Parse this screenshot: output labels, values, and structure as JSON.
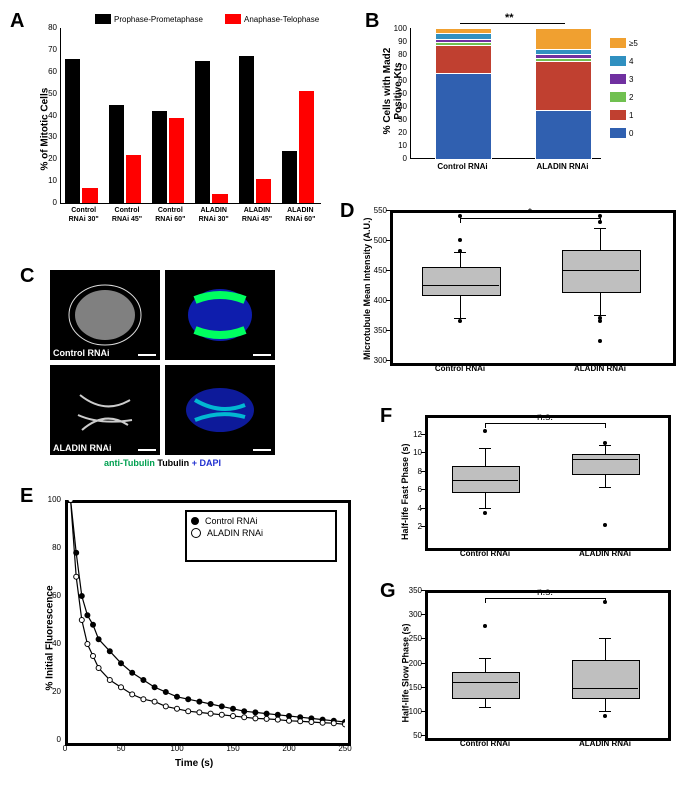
{
  "panelA": {
    "label": "A",
    "ylabel": "% of Mitotic Cells",
    "ylim": [
      0,
      80
    ],
    "ytick_step": 10,
    "categories": [
      "Control\nRNAi 30\"",
      "Control\nRNAi 45\"",
      "Control\nRNAi 60\"",
      "ALADIN\nRNAi 30\"",
      "ALADIN\nRNAi 45\"",
      "ALADIN\nRNAi 60\""
    ],
    "series": [
      {
        "name": "Prophase-Prometaphase",
        "color": "#000000",
        "values": [
          66,
          45,
          42,
          65,
          67,
          24
        ]
      },
      {
        "name": "Anaphase-Telophase",
        "color": "#ff0000",
        "values": [
          7,
          22,
          39,
          4,
          11,
          51
        ]
      }
    ]
  },
  "panelB": {
    "label": "B",
    "ylabel": "% Cells with Mad2\nPositive Kts",
    "ylim": [
      0,
      100
    ],
    "ytick_step": 10,
    "categories": [
      "Control RNAi",
      "ALADIN RNAi"
    ],
    "sig_label": "**",
    "stacks": {
      "legend": [
        "≥5",
        "4",
        "3",
        "2",
        "1",
        "0"
      ],
      "colors": [
        "#f0a030",
        "#3090c0",
        "#7030a0",
        "#70c050",
        "#c04030",
        "#3060b0"
      ],
      "data": [
        [
          3,
          5,
          2,
          2,
          22,
          66
        ],
        [
          15,
          4,
          3,
          3,
          37,
          38
        ]
      ]
    }
  },
  "panelC": {
    "label": "C",
    "rows": [
      {
        "label": "Control RNAi",
        "color_caption": ""
      },
      {
        "label": "ALADIN RNAi",
        "color_caption": ""
      }
    ],
    "caption_left": "anti-Tubulin",
    "caption_left_color": "#00a050",
    "caption_mid": "Tubulin",
    "caption_right": "+ DAPI",
    "caption_right_color": "#2030d0"
  },
  "panelD": {
    "label": "D",
    "ylabel": "Microtubule Mean Intensity (A.U.)",
    "ylim": [
      300,
      550
    ],
    "ytick_step": 50,
    "categories": [
      "Control RNAi",
      "ALADIN RNAi"
    ],
    "sig_label": "*",
    "boxes": [
      {
        "q1": 410,
        "median": 425,
        "q3": 455,
        "lo": 370,
        "hi": 480,
        "outliers": [
          365,
          482,
          500,
          540
        ]
      },
      {
        "q1": 415,
        "median": 450,
        "q3": 483,
        "lo": 375,
        "hi": 520,
        "outliers": [
          332,
          365,
          370,
          530,
          540
        ]
      }
    ]
  },
  "panelE": {
    "label": "E",
    "xlabel": "Time (s)",
    "ylabel": "% Initial Fluorescence",
    "xlim": [
      0,
      250
    ],
    "ylim": [
      0,
      100
    ],
    "xtick_step": 50,
    "ytick_step": 20,
    "legend": [
      {
        "name": "Control RNAi",
        "marker": "filled"
      },
      {
        "name": "ALADIN RNAi",
        "marker": "open"
      }
    ],
    "points_control": [
      [
        5,
        100
      ],
      [
        10,
        78
      ],
      [
        15,
        60
      ],
      [
        20,
        52
      ],
      [
        25,
        48
      ],
      [
        30,
        42
      ],
      [
        40,
        37
      ],
      [
        50,
        32
      ],
      [
        60,
        28
      ],
      [
        70,
        25
      ],
      [
        80,
        22
      ],
      [
        90,
        20
      ],
      [
        100,
        18
      ],
      [
        110,
        17
      ],
      [
        120,
        16
      ],
      [
        130,
        15
      ],
      [
        140,
        14
      ],
      [
        150,
        13
      ],
      [
        160,
        12
      ],
      [
        170,
        11.5
      ],
      [
        180,
        11
      ],
      [
        190,
        10.5
      ],
      [
        200,
        10
      ],
      [
        210,
        9.5
      ],
      [
        220,
        9
      ],
      [
        230,
        8.5
      ],
      [
        240,
        8
      ],
      [
        250,
        7.5
      ]
    ],
    "points_aladin": [
      [
        5,
        100
      ],
      [
        10,
        68
      ],
      [
        15,
        50
      ],
      [
        20,
        40
      ],
      [
        25,
        35
      ],
      [
        30,
        30
      ],
      [
        40,
        25
      ],
      [
        50,
        22
      ],
      [
        60,
        19
      ],
      [
        70,
        17
      ],
      [
        80,
        16
      ],
      [
        90,
        14
      ],
      [
        100,
        13
      ],
      [
        110,
        12
      ],
      [
        120,
        11.5
      ],
      [
        130,
        11
      ],
      [
        140,
        10.5
      ],
      [
        150,
        10
      ],
      [
        160,
        9.5
      ],
      [
        170,
        9
      ],
      [
        180,
        8.8
      ],
      [
        190,
        8.5
      ],
      [
        200,
        8
      ],
      [
        210,
        7.8
      ],
      [
        220,
        7.5
      ],
      [
        230,
        7.2
      ],
      [
        240,
        7
      ],
      [
        250,
        6.5
      ]
    ]
  },
  "panelF": {
    "label": "F",
    "ylabel": "Half-life Fast Phase (s)",
    "ylim": [
      0,
      14
    ],
    "yticks": [
      2,
      4,
      6,
      8,
      10,
      12
    ],
    "categories": [
      "Control RNAi",
      "ALADIN RNAi"
    ],
    "sig_label": "n.s.",
    "boxes": [
      {
        "q1": 5.8,
        "median": 7.0,
        "q3": 8.5,
        "lo": 4.0,
        "hi": 10.5,
        "outliers": [
          3.5,
          12.3
        ]
      },
      {
        "q1": 7.8,
        "median": 9.3,
        "q3": 9.8,
        "lo": 6.2,
        "hi": 10.8,
        "outliers": [
          2.2,
          11.0
        ]
      }
    ]
  },
  "panelG": {
    "label": "G",
    "ylabel": "Half-life Slow Phase (s)",
    "ylim": [
      50,
      350
    ],
    "ytick_step": 50,
    "categories": [
      "Control RNAi",
      "ALADIN RNAi"
    ],
    "sig_label": "n.s.",
    "boxes": [
      {
        "q1": 128,
        "median": 160,
        "q3": 180,
        "lo": 108,
        "hi": 210,
        "outliers": [
          275
        ]
      },
      {
        "q1": 128,
        "median": 148,
        "q3": 205,
        "lo": 100,
        "hi": 250,
        "outliers": [
          90,
          325
        ]
      }
    ]
  }
}
